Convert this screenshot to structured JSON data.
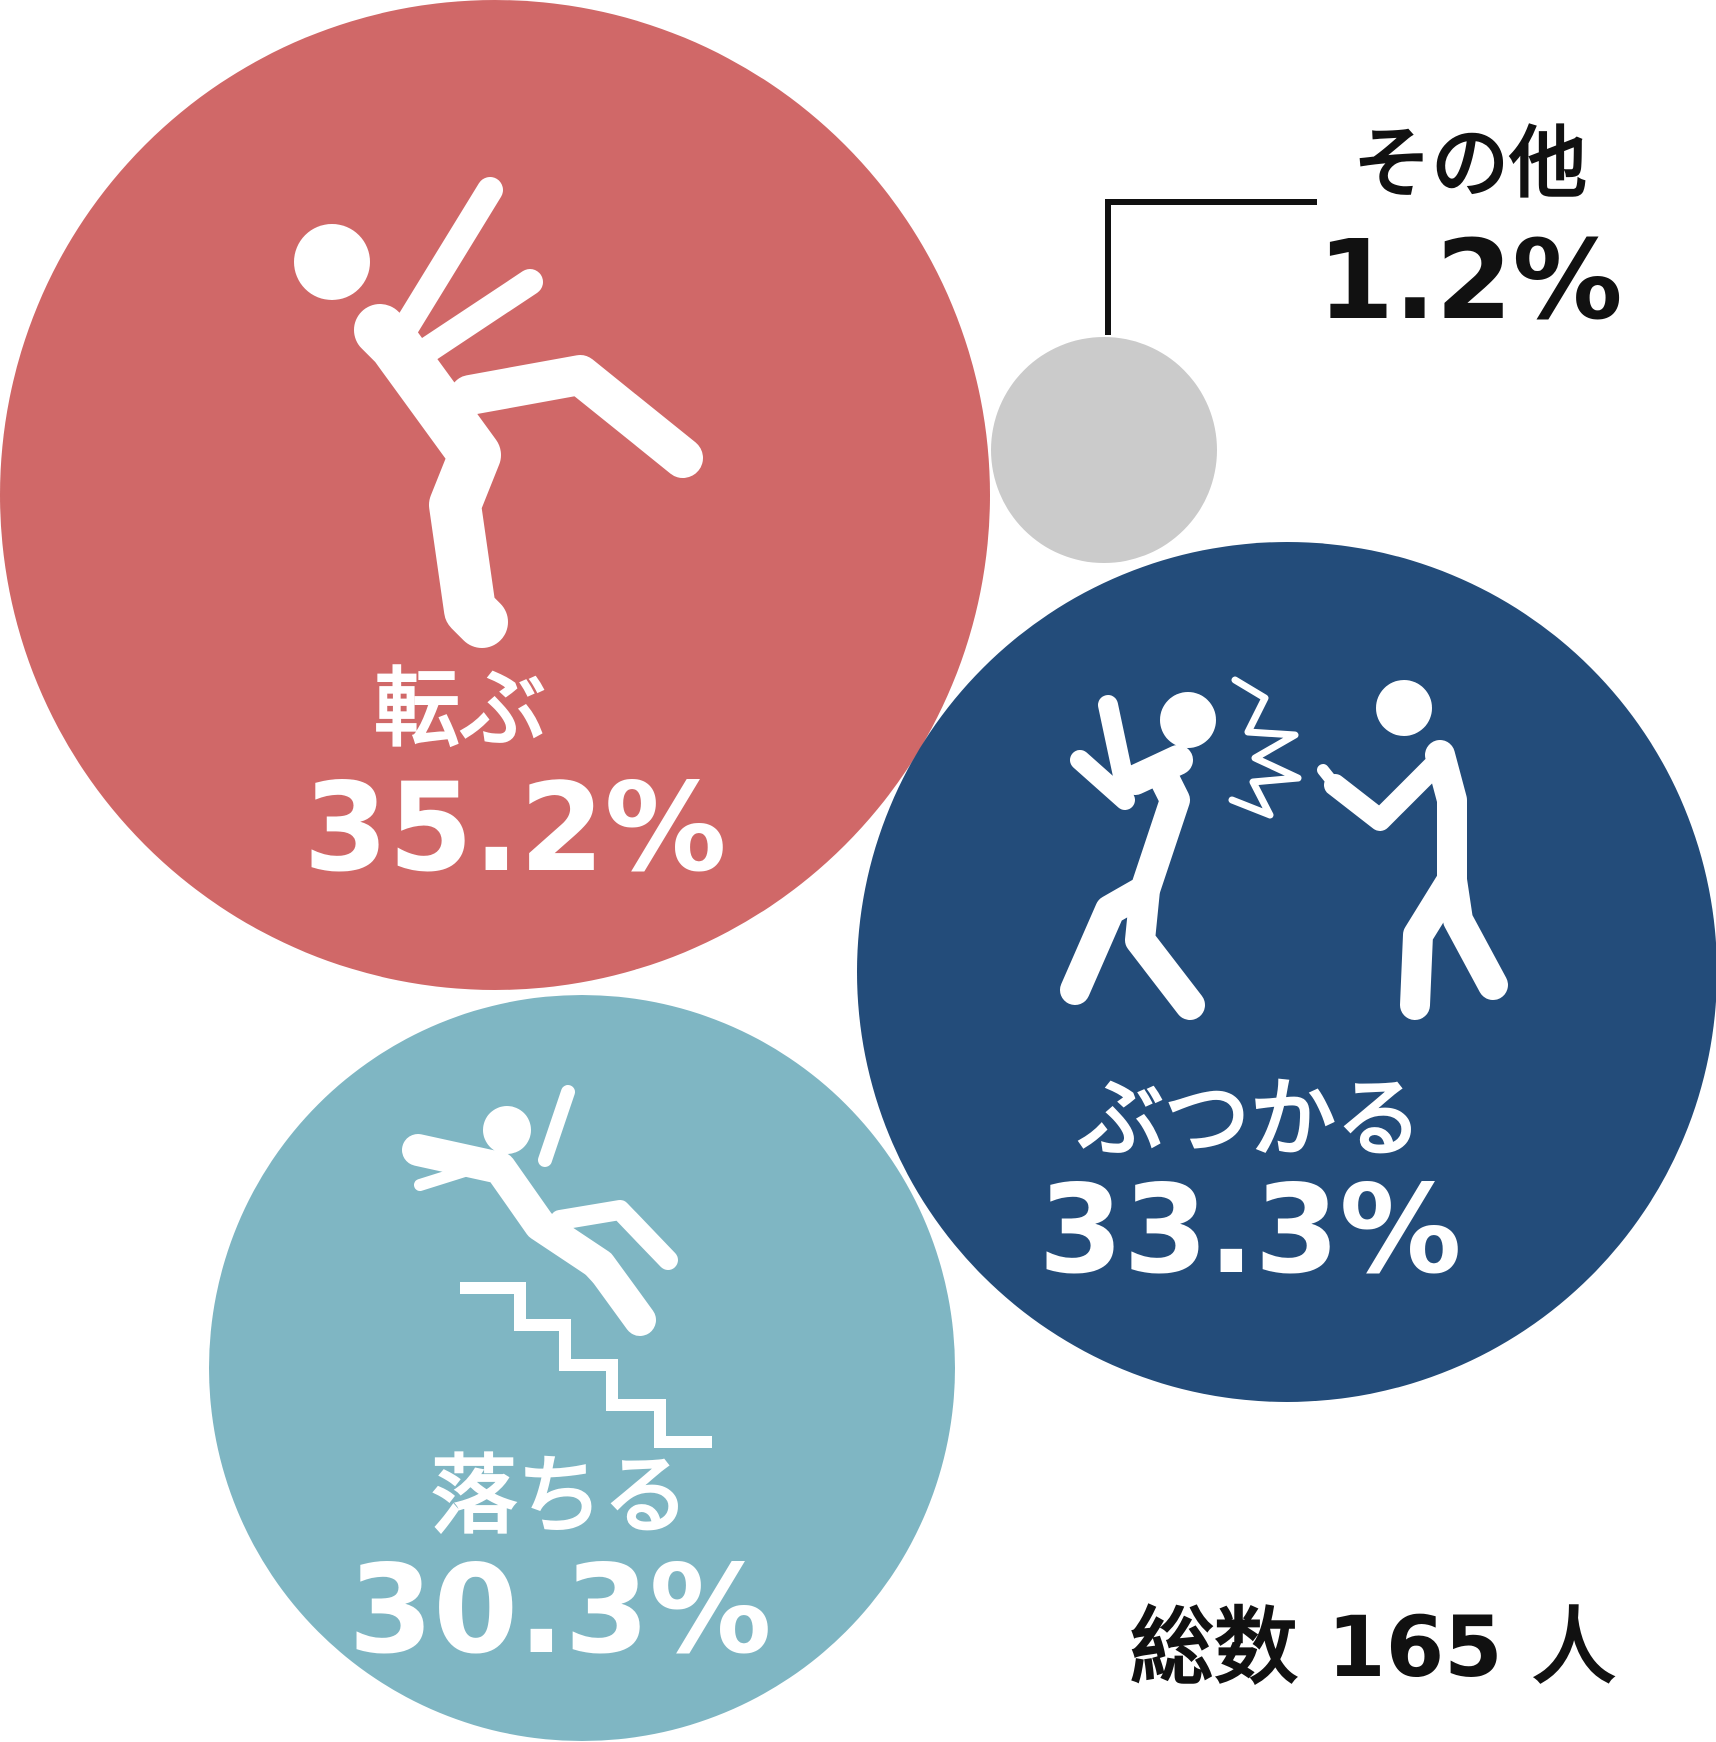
{
  "chart_data": {
    "type": "bubble",
    "categories": [
      "転ぶ",
      "ぶつかる",
      "落ちる",
      "その他"
    ],
    "values": [
      35.2,
      33.3,
      30.3,
      1.2
    ],
    "unit": "%",
    "series": [
      {
        "label": "転ぶ",
        "value": 35.2,
        "value_text": "35.2%",
        "color": "#d06868",
        "icon": "falling-person-icon"
      },
      {
        "label": "ぶつかる",
        "value": 33.3,
        "value_text": "33.3%",
        "color": "#234c7a",
        "icon": "collision-persons-icon"
      },
      {
        "label": "落ちる",
        "value": 30.3,
        "value_text": "30.3%",
        "color": "#7fb6c3",
        "icon": "falling-stairs-icon"
      },
      {
        "label": "その他",
        "value": 1.2,
        "value_text": "1.2%",
        "color": "#cbcbcb",
        "icon": ""
      }
    ],
    "total_text": "総数 165 人",
    "grid": false,
    "legend": "none"
  }
}
